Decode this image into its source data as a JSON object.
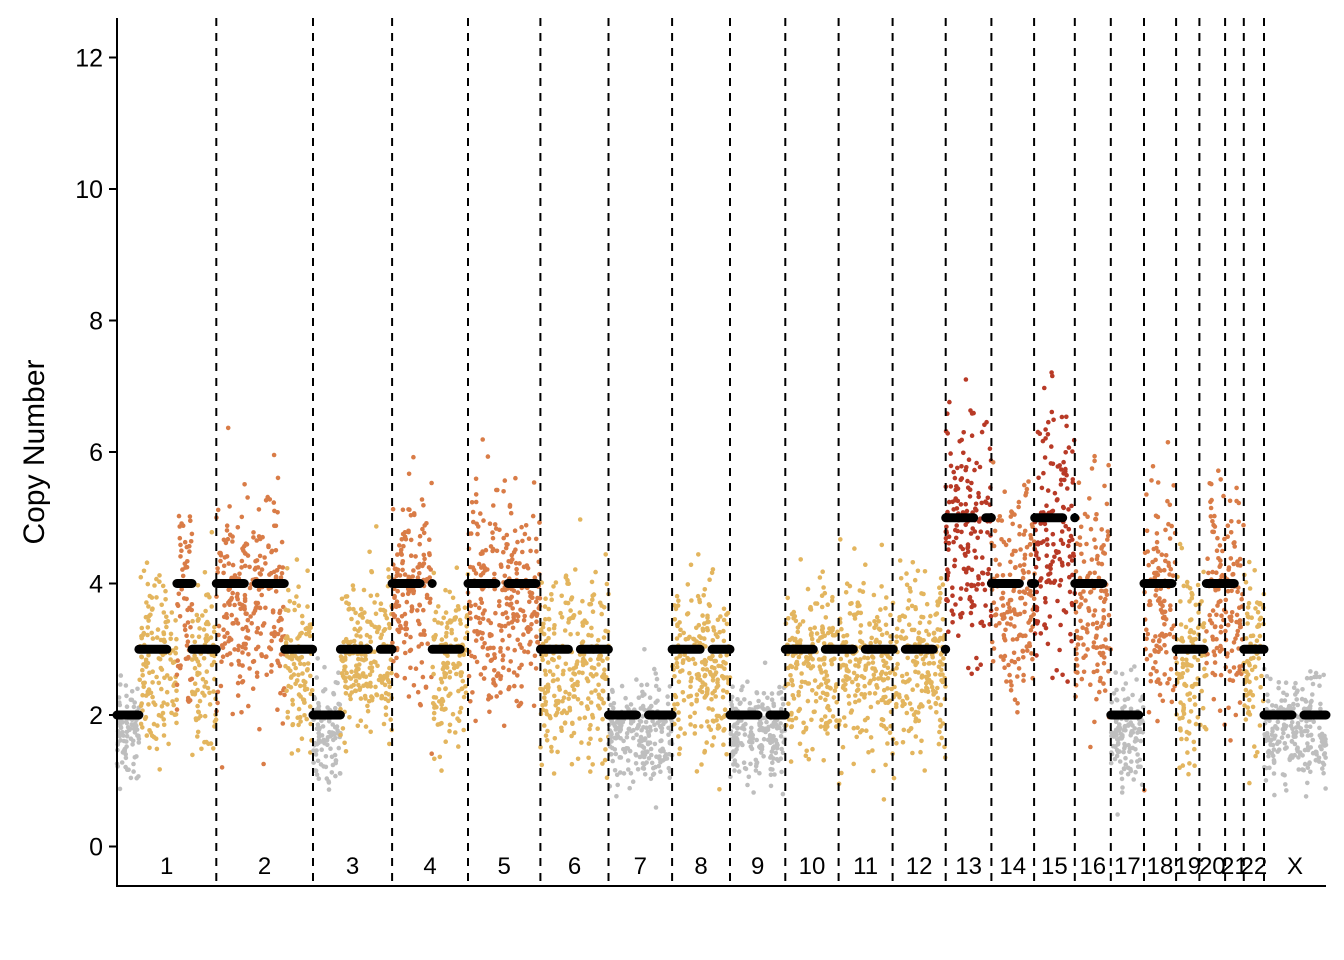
{
  "chart_data": {
    "type": "scatter",
    "subtype": "genome-wide copy number scatter with segment means",
    "title": "",
    "xlabel": "",
    "ylabel": "Copy Number",
    "ylim": [
      -0.6,
      12.6
    ],
    "y_ticks": [
      0,
      2,
      4,
      6,
      8,
      10,
      12
    ],
    "grid": false,
    "legend": "none",
    "colors": {
      "2": "#BEBEBE",
      "3": "#E3B55E",
      "4": "#D97C47",
      "5": "#B83A26",
      "segment": "#000000",
      "boundary": "#000000"
    },
    "chromosomes": [
      {
        "label": "1",
        "start": 0.0,
        "end": 248.9
      },
      {
        "label": "2",
        "start": 248.9,
        "end": 491.1
      },
      {
        "label": "3",
        "start": 491.1,
        "end": 689.4
      },
      {
        "label": "4",
        "start": 689.4,
        "end": 879.6
      },
      {
        "label": "5",
        "start": 879.6,
        "end": 1061.1
      },
      {
        "label": "6",
        "start": 1061.1,
        "end": 1231.9
      },
      {
        "label": "7",
        "start": 1231.9,
        "end": 1391.3
      },
      {
        "label": "8",
        "start": 1391.3,
        "end": 1536.4
      },
      {
        "label": "9",
        "start": 1536.4,
        "end": 1674.8
      },
      {
        "label": "10",
        "start": 1674.8,
        "end": 1808.6
      },
      {
        "label": "11",
        "start": 1808.6,
        "end": 1943.7
      },
      {
        "label": "12",
        "start": 1943.7,
        "end": 2077.0
      },
      {
        "label": "13",
        "start": 2077.0,
        "end": 2191.4
      },
      {
        "label": "14",
        "start": 2191.4,
        "end": 2298.4
      },
      {
        "label": "15",
        "start": 2298.4,
        "end": 2400.4
      },
      {
        "label": "16",
        "start": 2400.4,
        "end": 2490.7
      },
      {
        "label": "17",
        "start": 2490.7,
        "end": 2573.9
      },
      {
        "label": "18",
        "start": 2573.9,
        "end": 2654.2
      },
      {
        "label": "19",
        "start": 2654.2,
        "end": 2712.8
      },
      {
        "label": "20",
        "start": 2712.8,
        "end": 2777.2
      },
      {
        "label": "21",
        "start": 2777.2,
        "end": 2823.9
      },
      {
        "label": "22",
        "start": 2823.9,
        "end": 2874.7
      },
      {
        "label": "X",
        "start": 2874.7,
        "end": 3030.0
      }
    ],
    "segments": [
      {
        "start": 0,
        "end": 55,
        "cn": 2
      },
      {
        "start": 55,
        "end": 150,
        "cn": 3
      },
      {
        "start": 150,
        "end": 188,
        "cn": 4
      },
      {
        "start": 188,
        "end": 248.9,
        "cn": 3
      },
      {
        "start": 248.9,
        "end": 420,
        "cn": 4
      },
      {
        "start": 420,
        "end": 491.1,
        "cn": 3
      },
      {
        "start": 491.1,
        "end": 560,
        "cn": 2
      },
      {
        "start": 560,
        "end": 689.4,
        "cn": 3
      },
      {
        "start": 689.4,
        "end": 790,
        "cn": 4
      },
      {
        "start": 790,
        "end": 879.6,
        "cn": 3
      },
      {
        "start": 879.6,
        "end": 1061.1,
        "cn": 4
      },
      {
        "start": 1061.1,
        "end": 1231.9,
        "cn": 3
      },
      {
        "start": 1231.9,
        "end": 1391.3,
        "cn": 2
      },
      {
        "start": 1391.3,
        "end": 1536.4,
        "cn": 3
      },
      {
        "start": 1536.4,
        "end": 1674.8,
        "cn": 2
      },
      {
        "start": 1674.8,
        "end": 2077.0,
        "cn": 3
      },
      {
        "start": 2077.0,
        "end": 2191.4,
        "cn": 5
      },
      {
        "start": 2191.4,
        "end": 2300,
        "cn": 4
      },
      {
        "start": 2300,
        "end": 2400.4,
        "cn": 5
      },
      {
        "start": 2400.4,
        "end": 2490.7,
        "cn": 4
      },
      {
        "start": 2490.7,
        "end": 2573.9,
        "cn": 2
      },
      {
        "start": 2573.9,
        "end": 2654.2,
        "cn": 4
      },
      {
        "start": 2654.2,
        "end": 2730,
        "cn": 3
      },
      {
        "start": 2730,
        "end": 2823.9,
        "cn": 4
      },
      {
        "start": 2823.9,
        "end": 2874.7,
        "cn": 3
      },
      {
        "start": 2874.7,
        "end": 3030.0,
        "cn": 2
      }
    ]
  }
}
